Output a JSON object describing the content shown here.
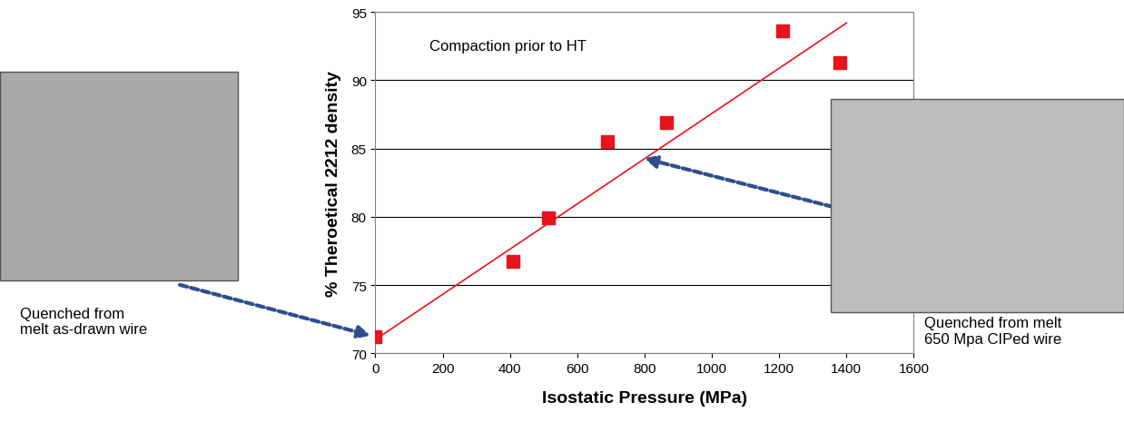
{
  "chart_data": {
    "type": "scatter",
    "x_label": "Isostatic Pressure (MPa)",
    "y_label": "% Theroetical 2212 density",
    "annotations": [
      "Compaction prior to HT",
      "Quenched from\nmelt as-drawn wire",
      "Quenched from melt\n650 Mpa CIPed wire"
    ],
    "series": [
      {
        "type": "scatter",
        "color": "#e8141b",
        "marker": "square",
        "x": [
          0,
          410,
          515,
          690,
          865,
          1210,
          1380
        ],
        "values": [
          71.2,
          76.7,
          79.9,
          85.5,
          86.9,
          93.6,
          91.3
        ]
      },
      {
        "type": "line",
        "color": "#e8141b",
        "line_style": "solid",
        "x": [
          0,
          1400
        ],
        "values": [
          71.0,
          94.2
        ]
      }
    ],
    "xlim": [
      0,
      1600
    ],
    "xticks": [
      0,
      200,
      400,
      600,
      800,
      1000,
      1200,
      1400,
      1600
    ],
    "ylim": [
      70,
      95
    ],
    "yticks": [
      70,
      75,
      80,
      85,
      90,
      95
    ],
    "grid": true
  }
}
